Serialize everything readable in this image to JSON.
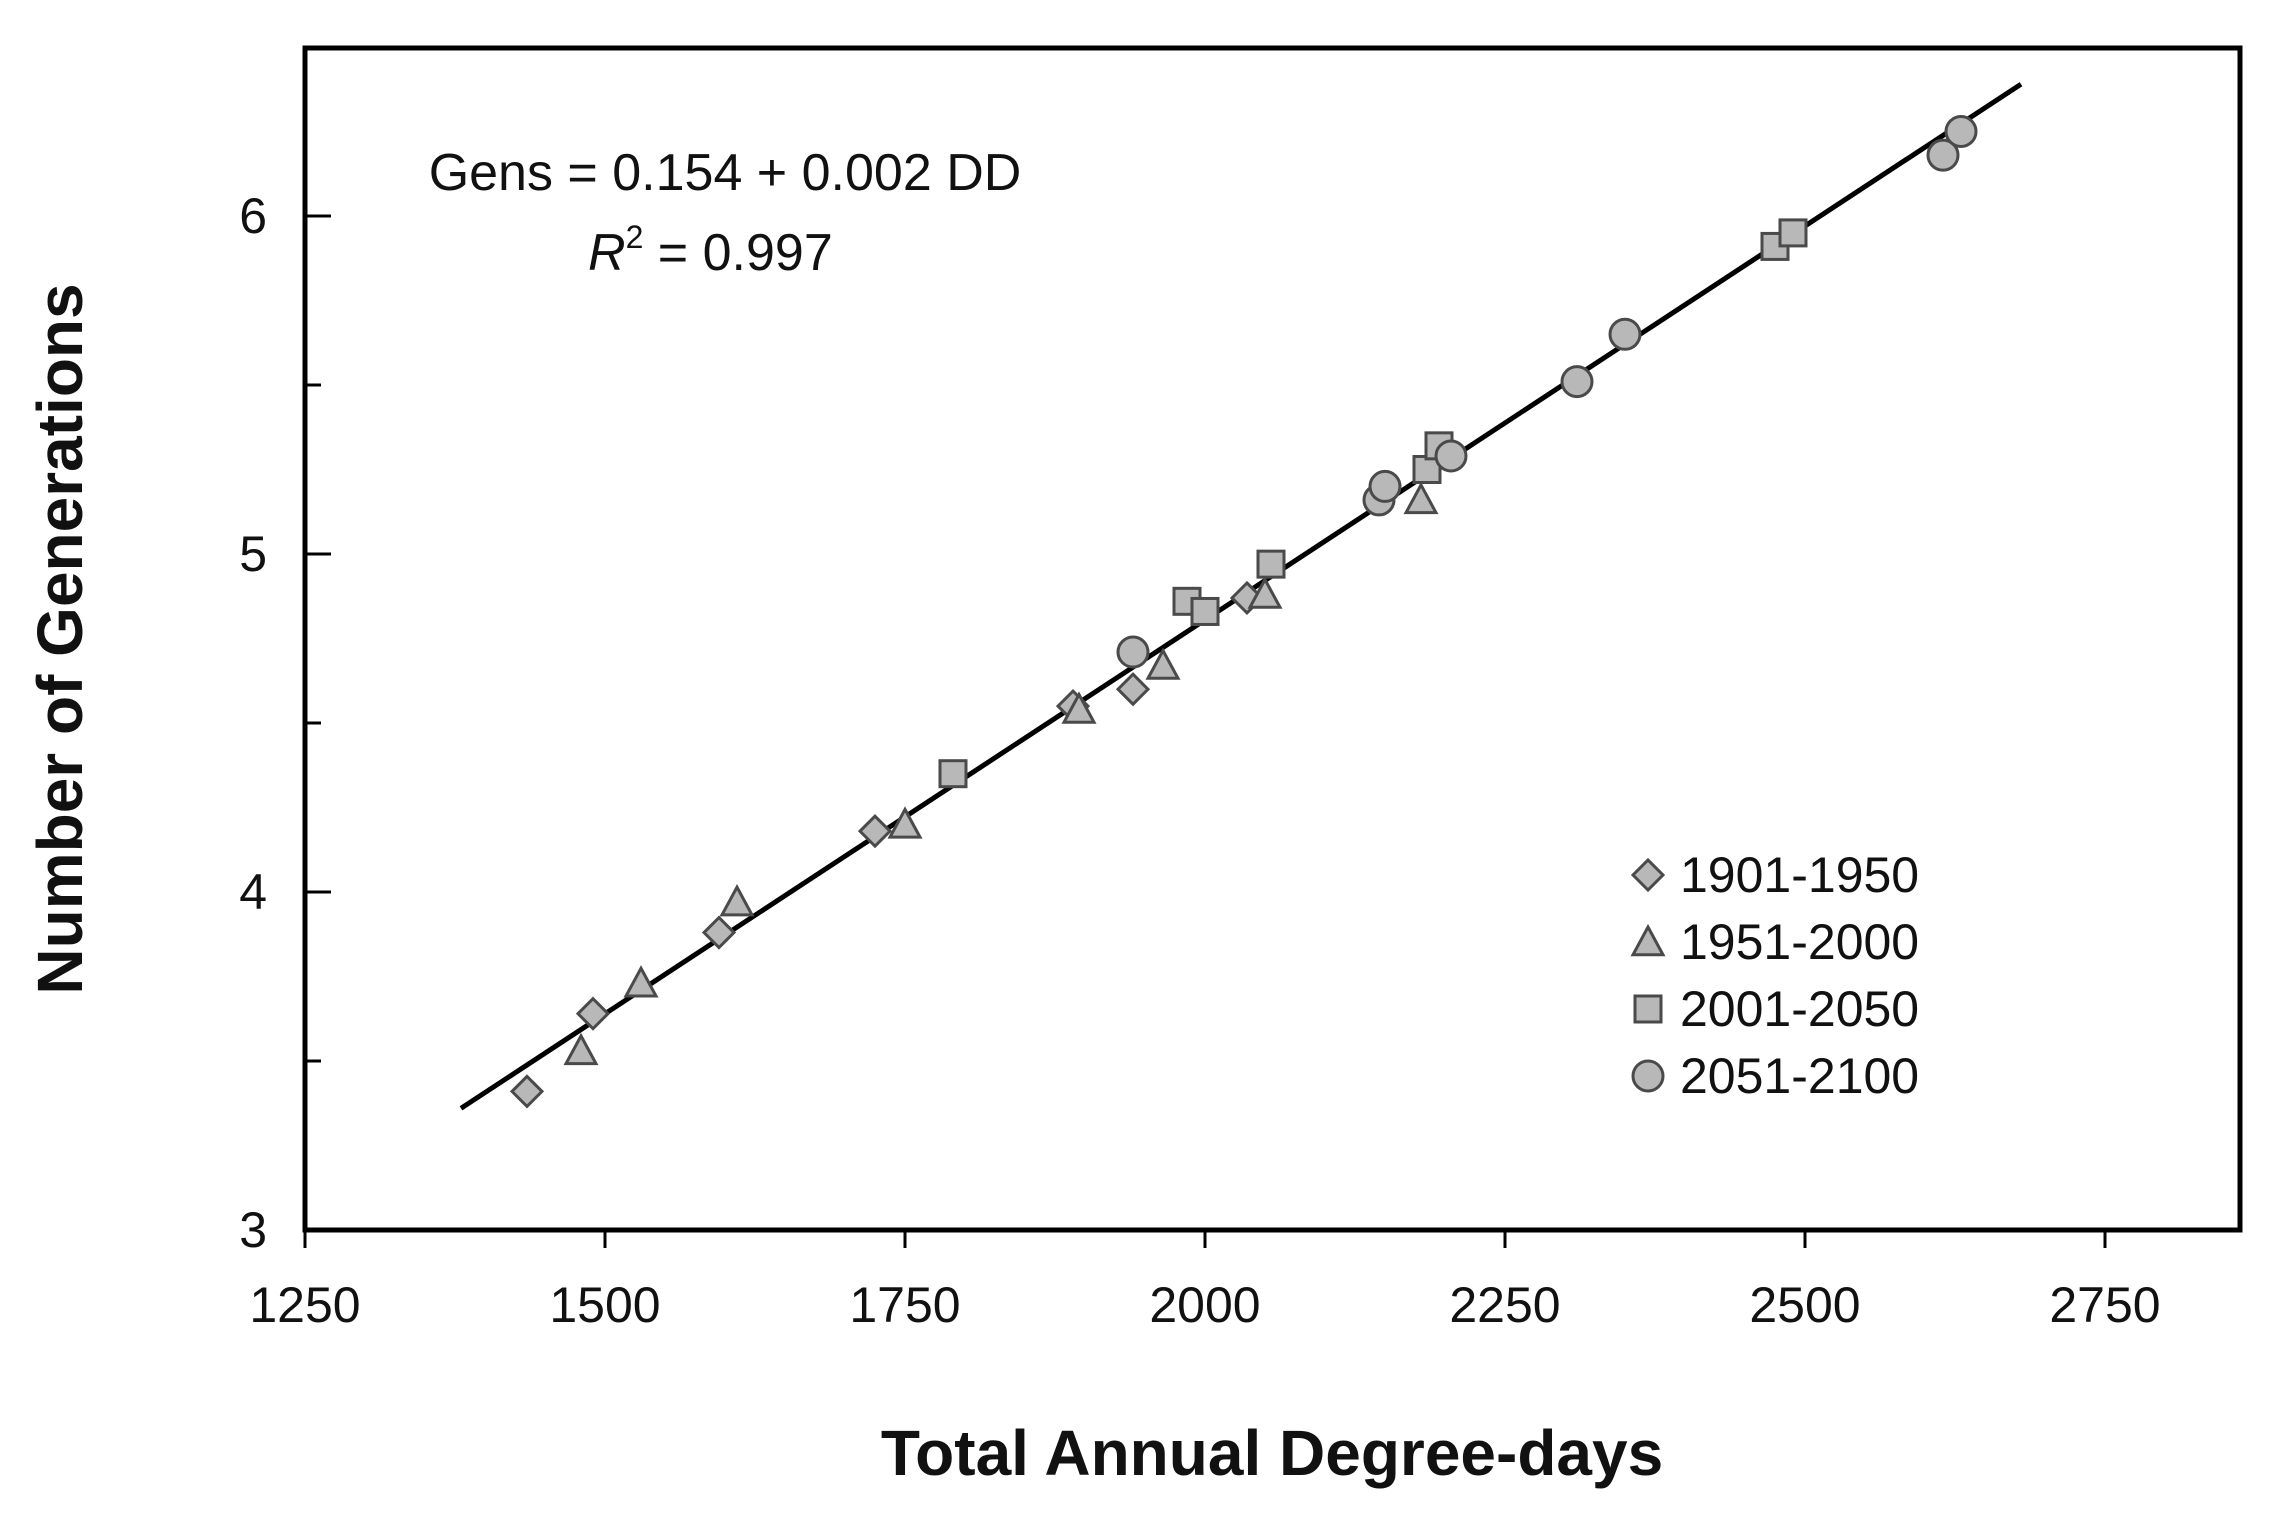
{
  "chart_data": {
    "type": "scatter",
    "xlabel": "Total Annual Degree-days",
    "ylabel": "Number of Generations",
    "xlim": [
      1250,
      2850
    ],
    "ylim": [
      3,
      6.5
    ],
    "x_ticks": [
      1250,
      1500,
      1750,
      2000,
      2250,
      2500,
      2750
    ],
    "y_ticks": [
      3,
      4,
      5,
      6
    ],
    "y_minor_step": 0.5,
    "grid": false,
    "legend_position": "bottom-right",
    "equation": {
      "line1": "Gens = 0.154 + 0.002 DD",
      "r2_var": "R",
      "r2_exp": "2",
      "r2_rest": " = 0.997"
    },
    "fit_line": {
      "x": [
        1380,
        2680
      ],
      "y": [
        3.36,
        6.39
      ]
    },
    "series": [
      {
        "name": "1901-1950",
        "marker": "diamond",
        "points": [
          [
            1435,
            3.41
          ],
          [
            1490,
            3.64
          ],
          [
            1595,
            3.88
          ],
          [
            1725,
            4.18
          ],
          [
            1890,
            4.55
          ],
          [
            1940,
            4.6
          ],
          [
            2035,
            4.87
          ]
        ]
      },
      {
        "name": "1951-2000",
        "marker": "triangle",
        "points": [
          [
            1480,
            3.53
          ],
          [
            1530,
            3.73
          ],
          [
            1610,
            3.97
          ],
          [
            1750,
            4.2
          ],
          [
            1895,
            4.54
          ],
          [
            1965,
            4.67
          ],
          [
            2050,
            4.88
          ],
          [
            2180,
            5.16
          ]
        ]
      },
      {
        "name": "2001-2050",
        "marker": "square",
        "points": [
          [
            1790,
            4.35
          ],
          [
            1985,
            4.86
          ],
          [
            2000,
            4.83
          ],
          [
            2055,
            4.97
          ],
          [
            2185,
            5.25
          ],
          [
            2195,
            5.32
          ],
          [
            2475,
            5.91
          ],
          [
            2490,
            5.95
          ]
        ]
      },
      {
        "name": "2051-2100",
        "marker": "circle",
        "points": [
          [
            1940,
            4.71
          ],
          [
            2145,
            5.16
          ],
          [
            2150,
            5.2
          ],
          [
            2205,
            5.29
          ],
          [
            2310,
            5.51
          ],
          [
            2350,
            5.65
          ],
          [
            2615,
            6.18
          ],
          [
            2630,
            6.25
          ]
        ]
      }
    ],
    "colors": {
      "marker_fill": "#b8b8b8",
      "marker_stroke": "#4a4a4a",
      "line": "#000000"
    }
  }
}
